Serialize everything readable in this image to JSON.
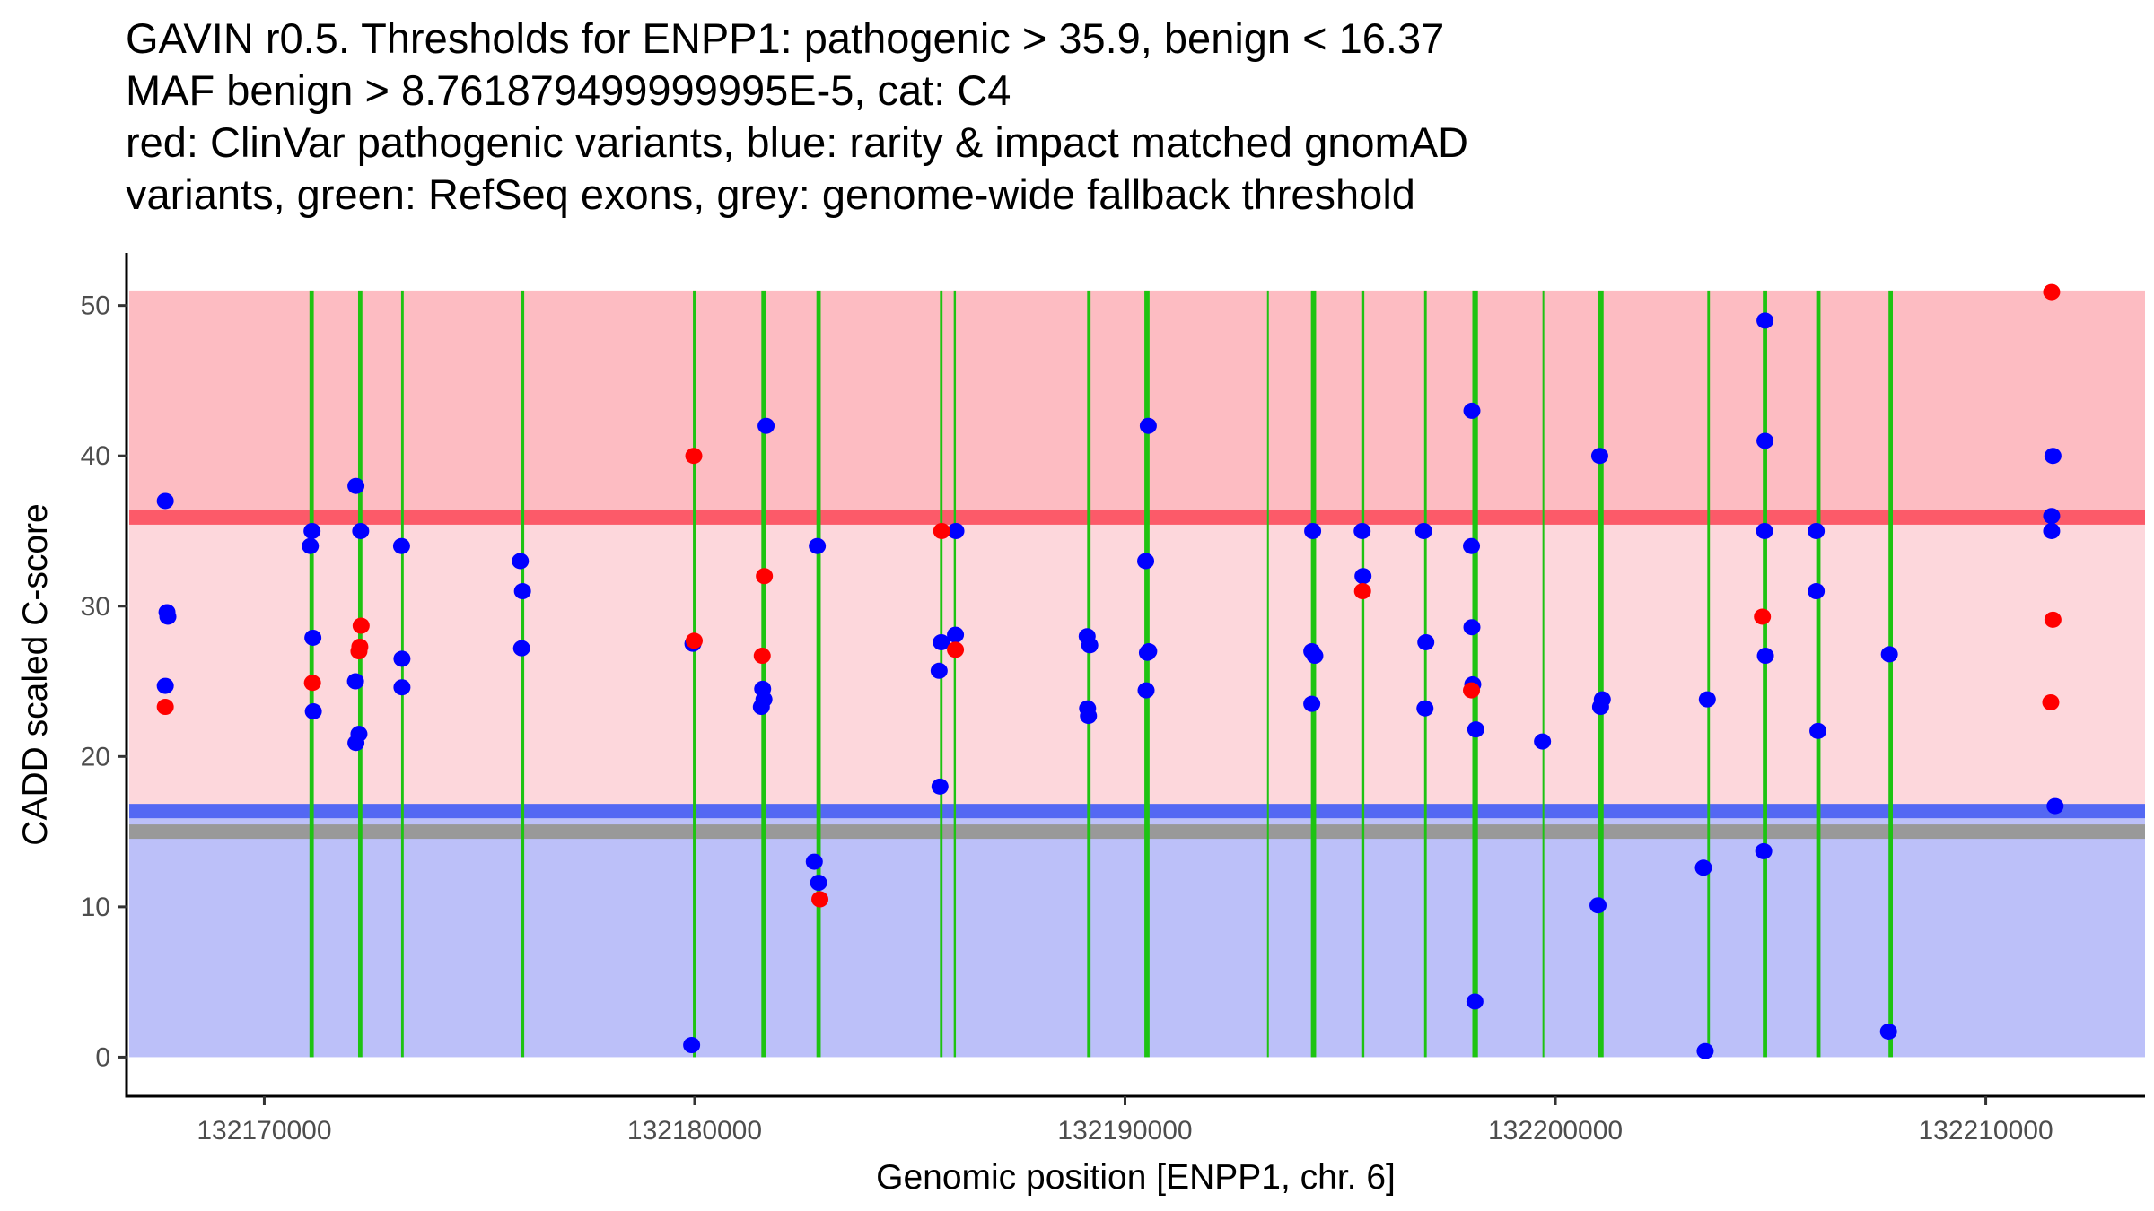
{
  "chart_data": {
    "type": "scatter",
    "title_lines": [
      "GAVIN r0.5. Thresholds for ENPP1: pathogenic > 35.9, benign < 16.37",
      "MAF benign > 8.761879499999995E-5, cat: C4",
      "red: ClinVar pathogenic variants, blue: rarity & impact matched gnomAD",
      "variants, green: RefSeq exons, grey: genome-wide fallback threshold"
    ],
    "xlabel": "Genomic position [ENPP1, chr. 6]",
    "ylabel": "CADD scaled C-score",
    "xlim": [
      132166800,
      132213700
    ],
    "ylim": [
      -2.6,
      53.5
    ],
    "xticks": [
      132170000,
      132180000,
      132190000,
      132200000,
      132210000
    ],
    "xtick_labels": [
      "132170000",
      "132180000",
      "132190000",
      "132200000",
      "132210000"
    ],
    "yticks": [
      0,
      10,
      20,
      30,
      40,
      50
    ],
    "ytick_labels": [
      "0",
      "10",
      "20",
      "30",
      "40",
      "50"
    ],
    "grid": false,
    "legend": "none",
    "thresholds": {
      "pathogenic": 35.9,
      "benign": 16.37,
      "genome_wide_fallback": 15.0,
      "band_top": 51
    },
    "colors": {
      "pathogenic_band": "#fdbcc2",
      "pathogenic_line": "#fc5a69",
      "vus_band": "#fdd7dc",
      "benign_line": "#5468f3",
      "fallback_line": "#999999",
      "benign_band": "#bcc0f9",
      "exon": "#1ec312",
      "clinvar": "#ff0000",
      "gnomad": "#0000ff"
    },
    "exons": [
      {
        "start": 132171050,
        "end": 132171150
      },
      {
        "start": 132172180,
        "end": 132172280
      },
      {
        "start": 132173180,
        "end": 132173240
      },
      {
        "start": 132175960,
        "end": 132176040
      },
      {
        "start": 132179960,
        "end": 132180030
      },
      {
        "start": 132181550,
        "end": 132181650
      },
      {
        "start": 132182830,
        "end": 132182930
      },
      {
        "start": 132185700,
        "end": 132185760
      },
      {
        "start": 132186020,
        "end": 132186070
      },
      {
        "start": 132189120,
        "end": 132189200
      },
      {
        "start": 132190450,
        "end": 132190570
      },
      {
        "start": 132193300,
        "end": 132193320
      },
      {
        "start": 132194320,
        "end": 132194440
      },
      {
        "start": 132195490,
        "end": 132195560
      },
      {
        "start": 132196950,
        "end": 132197010
      },
      {
        "start": 132198070,
        "end": 132198200
      },
      {
        "start": 132199700,
        "end": 132199720
      },
      {
        "start": 132201000,
        "end": 132201120
      },
      {
        "start": 132203530,
        "end": 132203590
      },
      {
        "start": 132204820,
        "end": 132204920
      },
      {
        "start": 132206060,
        "end": 132206160
      },
      {
        "start": 132207740,
        "end": 132207840
      }
    ],
    "series": [
      {
        "name": "ClinVar pathogenic variants",
        "color": "red",
        "points": [
          {
            "x": 132167700,
            "y": 23.3
          },
          {
            "x": 132171120,
            "y": 24.9
          },
          {
            "x": 132172250,
            "y": 28.7
          },
          {
            "x": 132172220,
            "y": 27.3
          },
          {
            "x": 132172200,
            "y": 27.0
          },
          {
            "x": 132179980,
            "y": 40.0
          },
          {
            "x": 132179990,
            "y": 27.7
          },
          {
            "x": 132181620,
            "y": 32.0
          },
          {
            "x": 132181570,
            "y": 26.7
          },
          {
            "x": 132182910,
            "y": 10.5
          },
          {
            "x": 132185740,
            "y": 35.0
          },
          {
            "x": 132186060,
            "y": 27.1
          },
          {
            "x": 132195520,
            "y": 31.0
          },
          {
            "x": 132198050,
            "y": 24.4
          },
          {
            "x": 132204810,
            "y": 29.3
          },
          {
            "x": 132211530,
            "y": 50.9
          },
          {
            "x": 132211560,
            "y": 29.1
          },
          {
            "x": 132211510,
            "y": 23.6
          }
        ]
      },
      {
        "name": "rarity & impact matched gnomAD variants",
        "color": "blue",
        "points": [
          {
            "x": 132167700,
            "y": 37.0
          },
          {
            "x": 132167740,
            "y": 29.6
          },
          {
            "x": 132167760,
            "y": 29.3
          },
          {
            "x": 132167700,
            "y": 24.7
          },
          {
            "x": 132171110,
            "y": 35.0
          },
          {
            "x": 132171070,
            "y": 34.0
          },
          {
            "x": 132171130,
            "y": 27.9
          },
          {
            "x": 132171140,
            "y": 23.0
          },
          {
            "x": 132172130,
            "y": 38.0
          },
          {
            "x": 132172240,
            "y": 35.0
          },
          {
            "x": 132172120,
            "y": 25.0
          },
          {
            "x": 132172200,
            "y": 21.5
          },
          {
            "x": 132172130,
            "y": 20.9
          },
          {
            "x": 132173190,
            "y": 34.0
          },
          {
            "x": 132173200,
            "y": 26.5
          },
          {
            "x": 132173200,
            "y": 24.6
          },
          {
            "x": 132175950,
            "y": 33.0
          },
          {
            "x": 132176000,
            "y": 31.0
          },
          {
            "x": 132175980,
            "y": 27.2
          },
          {
            "x": 132179960,
            "y": 27.5
          },
          {
            "x": 132179930,
            "y": 0.8
          },
          {
            "x": 132181660,
            "y": 42.0
          },
          {
            "x": 132181580,
            "y": 24.5
          },
          {
            "x": 132181610,
            "y": 23.8
          },
          {
            "x": 132181550,
            "y": 23.3
          },
          {
            "x": 132182780,
            "y": 13.0
          },
          {
            "x": 132182850,
            "y": 34.0
          },
          {
            "x": 132182880,
            "y": 11.6
          },
          {
            "x": 132185730,
            "y": 27.6
          },
          {
            "x": 132185680,
            "y": 25.7
          },
          {
            "x": 132185700,
            "y": 18.0
          },
          {
            "x": 132186070,
            "y": 35.0
          },
          {
            "x": 132186060,
            "y": 28.1
          },
          {
            "x": 132189120,
            "y": 28.0
          },
          {
            "x": 132189180,
            "y": 27.4
          },
          {
            "x": 132189130,
            "y": 23.2
          },
          {
            "x": 132189150,
            "y": 22.7
          },
          {
            "x": 132190540,
            "y": 42.0
          },
          {
            "x": 132190480,
            "y": 33.0
          },
          {
            "x": 132190550,
            "y": 27.0
          },
          {
            "x": 132190520,
            "y": 26.9
          },
          {
            "x": 132190490,
            "y": 24.4
          },
          {
            "x": 132194360,
            "y": 35.0
          },
          {
            "x": 132194340,
            "y": 27.0
          },
          {
            "x": 132194410,
            "y": 26.7
          },
          {
            "x": 132194340,
            "y": 23.5
          },
          {
            "x": 132195510,
            "y": 35.0
          },
          {
            "x": 132195530,
            "y": 32.0
          },
          {
            "x": 132196940,
            "y": 35.0
          },
          {
            "x": 132196990,
            "y": 27.6
          },
          {
            "x": 132196970,
            "y": 23.2
          },
          {
            "x": 132198060,
            "y": 43.0
          },
          {
            "x": 132198050,
            "y": 34.0
          },
          {
            "x": 132198060,
            "y": 28.6
          },
          {
            "x": 132198080,
            "y": 24.8
          },
          {
            "x": 132198150,
            "y": 21.8
          },
          {
            "x": 132198130,
            "y": 3.7
          },
          {
            "x": 132199700,
            "y": 21.0
          },
          {
            "x": 132201030,
            "y": 40.0
          },
          {
            "x": 132201090,
            "y": 23.8
          },
          {
            "x": 132201050,
            "y": 23.3
          },
          {
            "x": 132200990,
            "y": 10.1
          },
          {
            "x": 132203530,
            "y": 23.8
          },
          {
            "x": 132203440,
            "y": 12.6
          },
          {
            "x": 132203480,
            "y": 0.4
          },
          {
            "x": 132204870,
            "y": 49.0
          },
          {
            "x": 132204870,
            "y": 41.0
          },
          {
            "x": 132204860,
            "y": 35.0
          },
          {
            "x": 132204880,
            "y": 26.7
          },
          {
            "x": 132204840,
            "y": 13.7
          },
          {
            "x": 132206060,
            "y": 35.0
          },
          {
            "x": 132206060,
            "y": 31.0
          },
          {
            "x": 132206100,
            "y": 21.7
          },
          {
            "x": 132207760,
            "y": 26.8
          },
          {
            "x": 132207740,
            "y": 1.7
          },
          {
            "x": 132211560,
            "y": 40.0
          },
          {
            "x": 132211530,
            "y": 36.0
          },
          {
            "x": 132211530,
            "y": 35.0
          },
          {
            "x": 132211610,
            "y": 16.7
          }
        ]
      }
    ]
  }
}
